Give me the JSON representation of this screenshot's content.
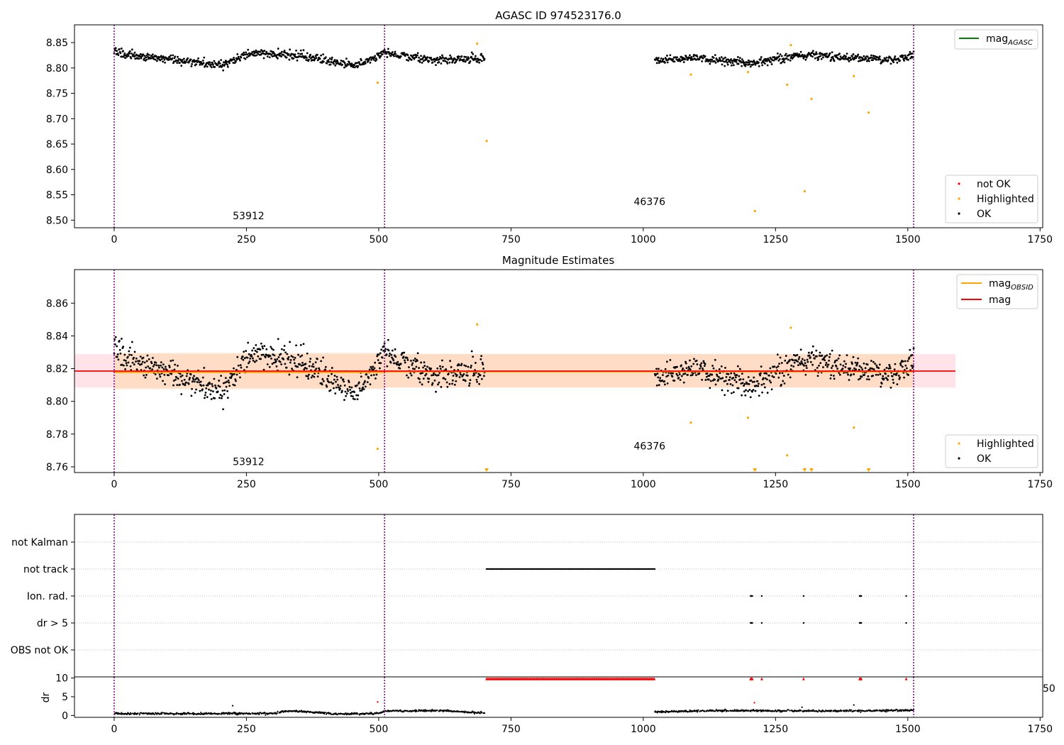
{
  "colors": {
    "ok": "#000000",
    "highlighted": "#ffa500",
    "not_ok": "#ff0000",
    "mag_agasc": "#008000",
    "mag_obsid": "#ffa500",
    "mag": "#ff0000",
    "obsid_boundary": "#800080",
    "band_obsid": "#ffdab9",
    "band_mag": "#ffc0cb"
  },
  "chart_data": [
    {
      "type": "scatter",
      "title": "AGASC ID 974523176.0",
      "xlim": [
        -75,
        1755
      ],
      "ylim": [
        8.485,
        8.885
      ],
      "xticks": [
        "0",
        "250",
        "500",
        "750",
        "1000",
        "1250",
        "1500",
        "1750"
      ],
      "yticks": [
        "8.50",
        "8.55",
        "8.60",
        "8.65",
        "8.70",
        "8.75",
        "8.80",
        "8.85"
      ],
      "legend_lines": [
        {
          "label": "mag",
          "sub": "AGASC",
          "color": "#008000"
        }
      ],
      "legend_markers": [
        {
          "label": "not OK",
          "color": "#ff0000"
        },
        {
          "label": "Highlighted",
          "color": "#ffa500"
        },
        {
          "label": "OK",
          "color": "#000000"
        }
      ],
      "obsid_labels": [
        {
          "text": "53912",
          "x": 254,
          "y": 8.502
        },
        {
          "text": "46376",
          "x": 1012,
          "y": 8.53
        }
      ],
      "obsid_boundaries": [
        0,
        511,
        1511
      ],
      "highlighted": [
        [
          498,
          8.771
        ],
        [
          686,
          8.848
        ],
        [
          704,
          8.656
        ],
        [
          1090,
          8.787
        ],
        [
          1198,
          8.792
        ],
        [
          1211,
          8.518
        ],
        [
          1272,
          8.767
        ],
        [
          1279,
          8.845
        ],
        [
          1305,
          8.557
        ],
        [
          1318,
          8.739
        ],
        [
          1398,
          8.784
        ],
        [
          1426,
          8.712
        ]
      ],
      "ok_segments": [
        {
          "x_start": 0,
          "x_end": 700,
          "baseline": [
            [
              0,
              8.83
            ],
            [
              120,
              8.815
            ],
            [
              200,
              8.805
            ],
            [
              260,
              8.83
            ],
            [
              350,
              8.825
            ],
            [
              460,
              8.805
            ],
            [
              511,
              8.83
            ],
            [
              600,
              8.815
            ],
            [
              700,
              8.82
            ]
          ],
          "spread": 0.008
        },
        {
          "x_start": 1022,
          "x_end": 1511,
          "baseline": [
            [
              1022,
              8.815
            ],
            [
              1100,
              8.82
            ],
            [
              1200,
              8.81
            ],
            [
              1300,
              8.825
            ],
            [
              1400,
              8.82
            ],
            [
              1470,
              8.815
            ],
            [
              1511,
              8.825
            ]
          ],
          "spread": 0.008
        }
      ]
    },
    {
      "type": "scatter",
      "title": "Magnitude Estimates",
      "xlim": [
        -75,
        1755
      ],
      "ylim": [
        8.7565,
        8.8805
      ],
      "xticks": [
        "0",
        "250",
        "500",
        "750",
        "1000",
        "1250",
        "1500",
        "1750"
      ],
      "yticks": [
        "8.76",
        "8.78",
        "8.80",
        "8.82",
        "8.84",
        "8.86"
      ],
      "legend_lines": [
        {
          "label": "mag",
          "sub": "OBSID",
          "color": "#ffa500"
        },
        {
          "label": "mag",
          "sub": "",
          "color": "#ff0000"
        }
      ],
      "legend_markers": [
        {
          "label": "Highlighted",
          "color": "#ffa500"
        },
        {
          "label": "OK",
          "color": "#000000"
        }
      ],
      "obsid_labels": [
        {
          "text": "53912",
          "x": 254,
          "y": 8.761
        },
        {
          "text": "46376",
          "x": 1012,
          "y": 8.7705
        }
      ],
      "obsid_boundaries": [
        0,
        511,
        1511
      ],
      "mag": 8.8185,
      "mag_band": [
        8.8085,
        8.8288
      ],
      "mag_band_x": [
        -75,
        1590
      ],
      "obsid_mag": [
        {
          "x": [
            0,
            511
          ],
          "value": 8.8178,
          "band": [
            8.8075,
            8.8295
          ]
        },
        {
          "x": [
            511,
            1511
          ],
          "value": 8.8182,
          "band": [
            8.8085,
            8.829
          ]
        }
      ],
      "highlighted": [
        [
          498,
          8.771
        ],
        [
          686,
          8.847
        ],
        [
          1090,
          8.787
        ],
        [
          1198,
          8.79
        ],
        [
          1272,
          8.767
        ],
        [
          1279,
          8.845
        ],
        [
          1398,
          8.784
        ]
      ],
      "highlighted_below": [
        704,
        1211,
        1305,
        1318,
        1426
      ],
      "ok_segments": [
        {
          "x_start": 0,
          "x_end": 700,
          "baseline": [
            [
              0,
              8.83
            ],
            [
              120,
              8.815
            ],
            [
              200,
              8.805
            ],
            [
              260,
              8.83
            ],
            [
              350,
              8.825
            ],
            [
              460,
              8.805
            ],
            [
              511,
              8.83
            ],
            [
              600,
              8.815
            ],
            [
              700,
              8.82
            ]
          ],
          "spread": 0.008
        },
        {
          "x_start": 1022,
          "x_end": 1511,
          "baseline": [
            [
              1022,
              8.815
            ],
            [
              1100,
              8.82
            ],
            [
              1200,
              8.81
            ],
            [
              1300,
              8.825
            ],
            [
              1400,
              8.82
            ],
            [
              1470,
              8.815
            ],
            [
              1511,
              8.825
            ]
          ],
          "spread": 0.008
        }
      ]
    },
    {
      "type": "scatter",
      "title": "",
      "xlim": [
        -75,
        1755
      ],
      "categories": [
        "not Kalman",
        "not track",
        "Ion. rad.",
        "dr > 5",
        "OBS not OK"
      ],
      "obsid_boundaries": [
        0,
        511,
        1511
      ],
      "flags": {
        "not track": [
          [
            704,
            1022
          ]
        ],
        "Ion. rad.": [
          1203,
          1204,
          1205,
          1206,
          1224,
          1303,
          1409,
          1410,
          1411,
          1412,
          1497
        ],
        "dr > 5": [
          1203,
          1204,
          1205,
          1206,
          1224,
          1303,
          1409,
          1410,
          1411,
          1412,
          1497
        ]
      }
    },
    {
      "type": "scatter",
      "title": "",
      "ylabel": "dr",
      "xlim": [
        -75,
        1755
      ],
      "ylim": [
        -0.5,
        10.3
      ],
      "xticks": [
        "0",
        "250",
        "500",
        "750",
        "1000",
        "1250",
        "1500",
        "1750"
      ],
      "yticks": [
        "0",
        "5",
        "10"
      ],
      "edge_tick_label": "50",
      "obsid_boundaries": [
        0,
        511,
        1511
      ],
      "dr_clipped": [
        [
          704,
          1022
        ]
      ],
      "dr_clipped_points": [
        1203,
        1204,
        1205,
        1206,
        1224,
        1303,
        1409,
        1410,
        1411,
        1412,
        1497
      ],
      "dr_not_ok_points": [
        [
          498,
          3.6
        ],
        [
          1210,
          3.4
        ]
      ],
      "dr_ok_points": [
        [
          224,
          2.6
        ],
        [
          1398,
          2.8
        ],
        [
          1300,
          2.2
        ]
      ],
      "dr_baseline": [
        [
          0,
          0.5
        ],
        [
          300,
          0.5
        ],
        [
          330,
          1.2
        ],
        [
          390,
          0.8
        ],
        [
          420,
          0.4
        ],
        [
          500,
          0.5
        ],
        [
          511,
          1.2
        ],
        [
          620,
          1.3
        ],
        [
          700,
          0.6
        ],
        [
          1022,
          1.0
        ],
        [
          1150,
          1.3
        ],
        [
          1300,
          1.2
        ],
        [
          1400,
          1.2
        ],
        [
          1511,
          1.4
        ]
      ]
    }
  ]
}
